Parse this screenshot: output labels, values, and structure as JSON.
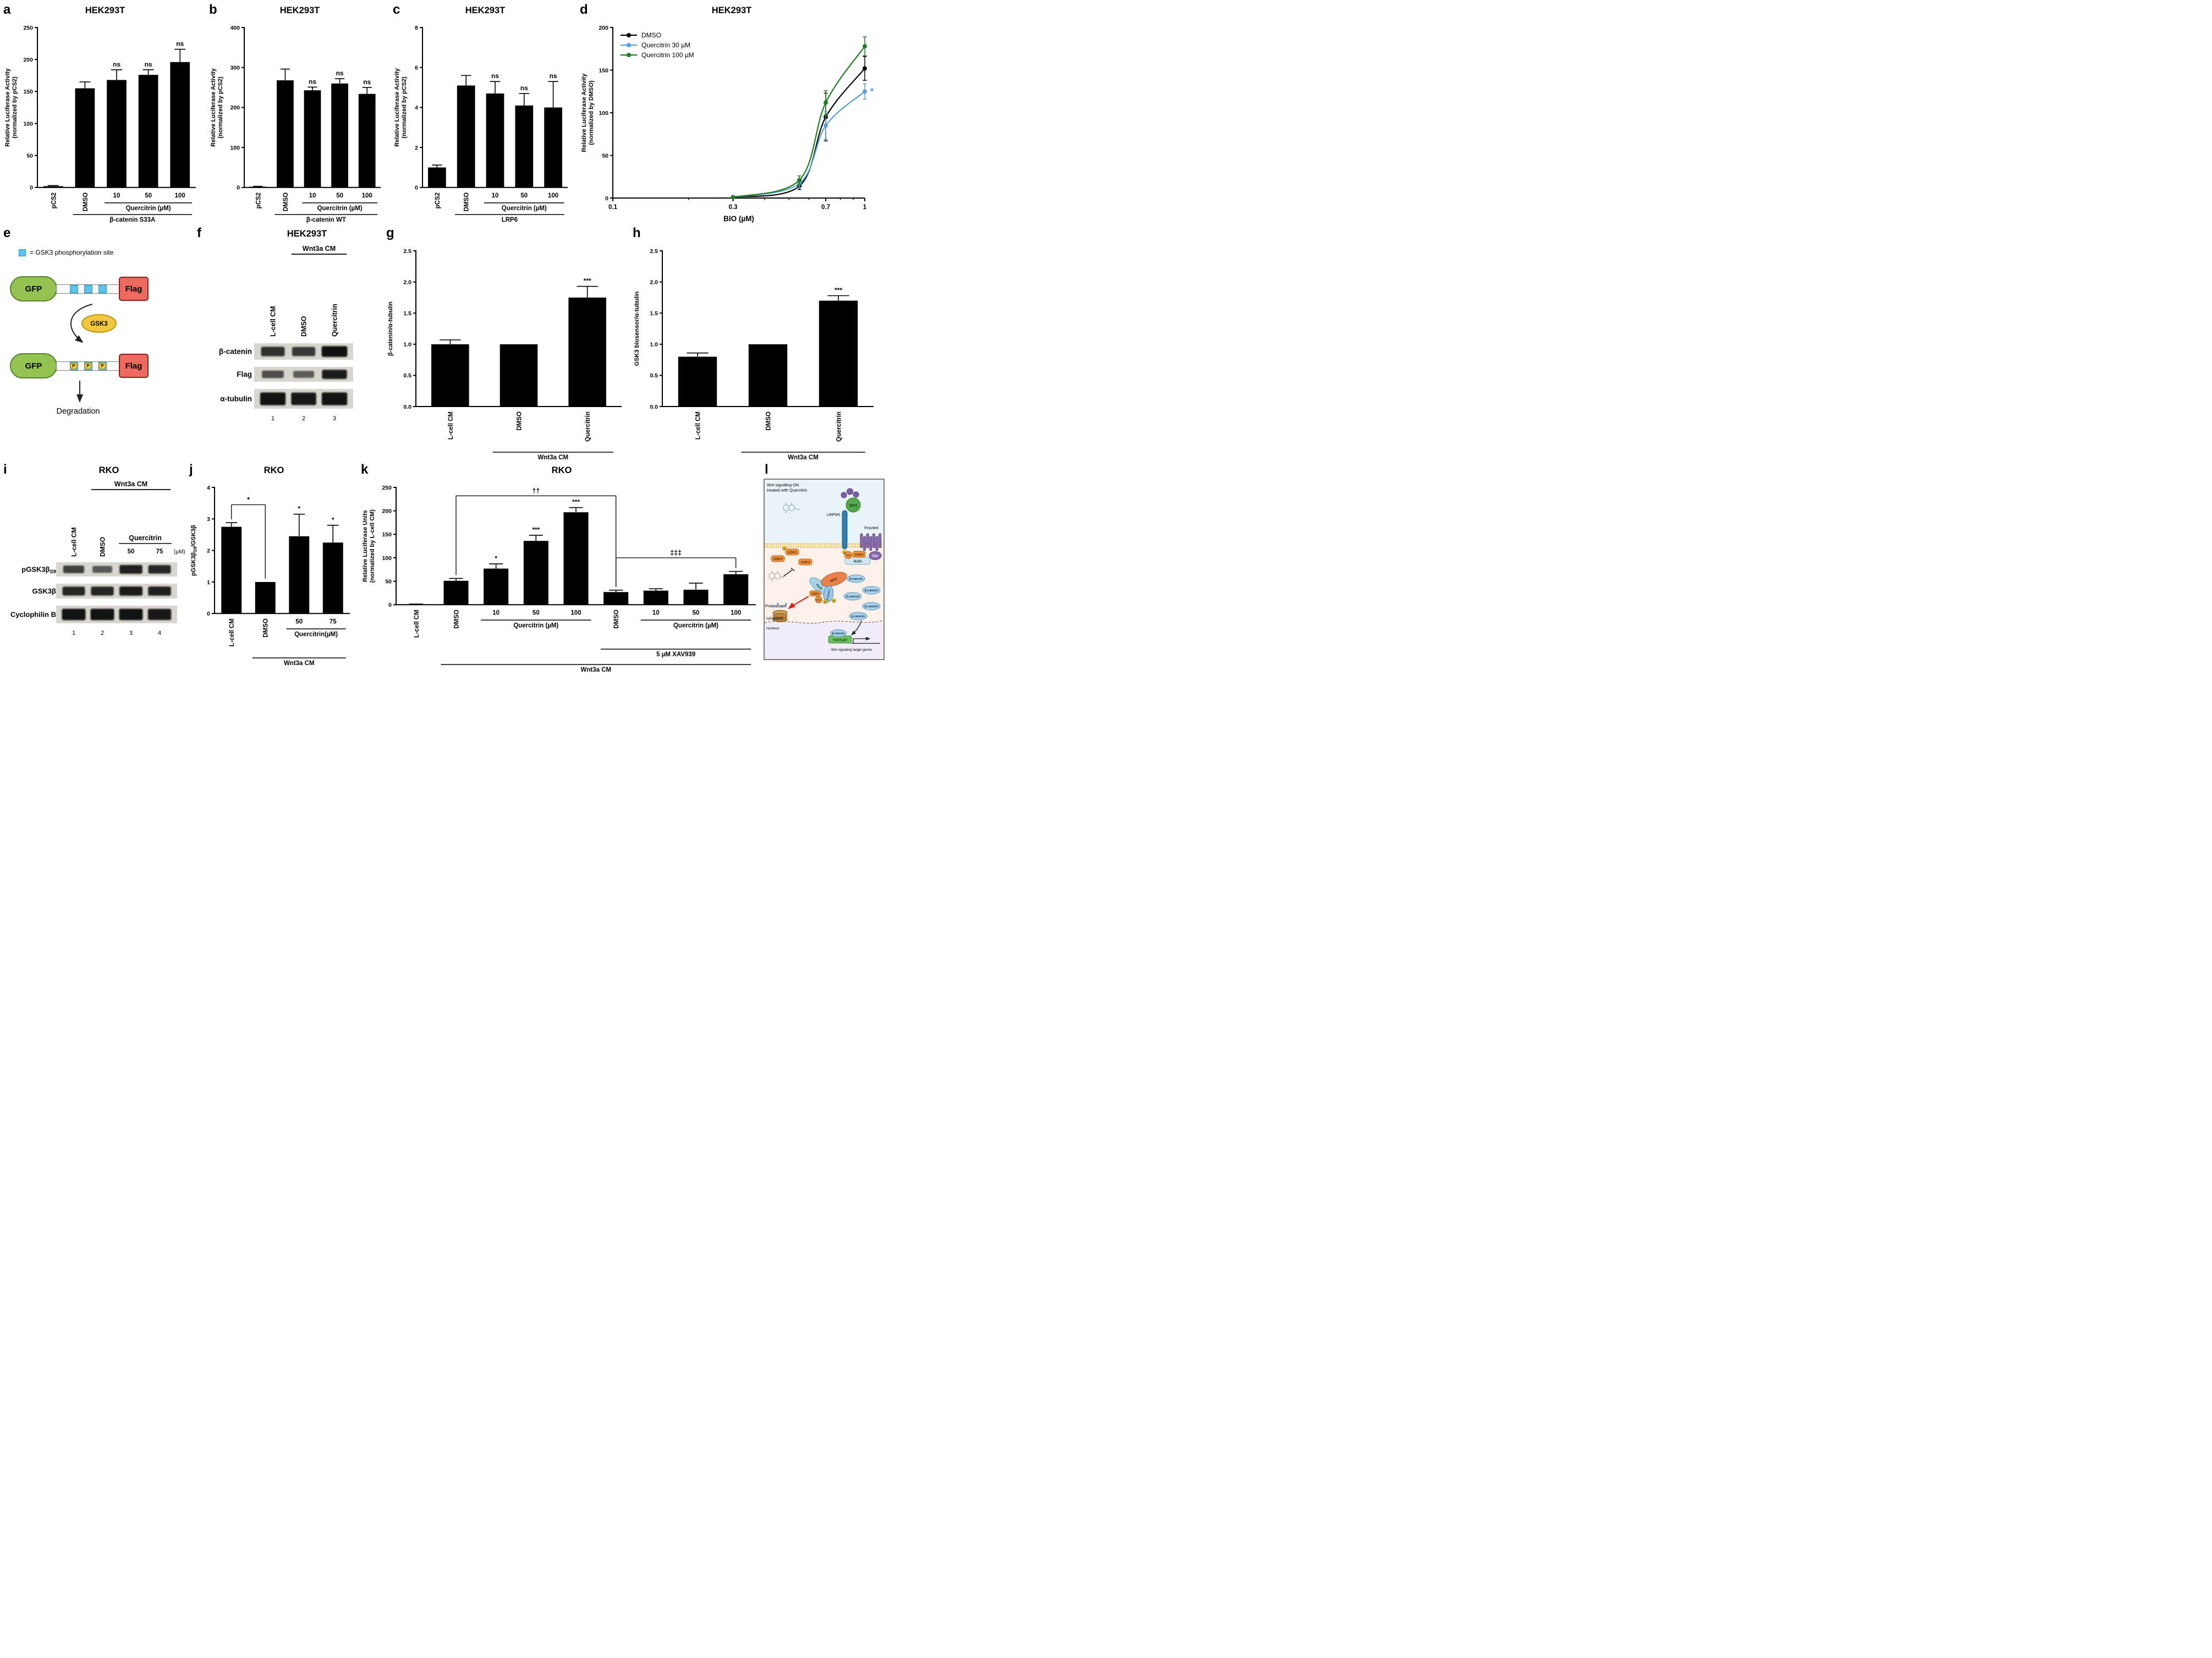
{
  "panels": {
    "a": {
      "letter": "a",
      "title": "HEK293T"
    },
    "b": {
      "letter": "b",
      "title": "HEK293T"
    },
    "c": {
      "letter": "c",
      "title": "HEK293T"
    },
    "d": {
      "letter": "d",
      "title": "HEK293T"
    },
    "e": {
      "letter": "e",
      "legend_text": "= GSK3 phosphorylation site",
      "gfp": "GFP",
      "flag": "Flag",
      "gsk3": "GSK3",
      "p": "P",
      "degradation": "Degradation"
    },
    "f": {
      "letter": "f",
      "title": "HEK293T"
    },
    "g": {
      "letter": "g"
    },
    "h": {
      "letter": "h"
    },
    "i": {
      "letter": "i",
      "title": "RKO"
    },
    "j": {
      "letter": "j",
      "title": "RKO"
    },
    "k": {
      "letter": "k",
      "title": "RKO"
    },
    "l": {
      "letter": "l",
      "header_line1": "Wnt signaling ON",
      "header_line2": "treated with Quercitrin",
      "lrp": "LRP5/6",
      "wnt": "Wnt",
      "frizzled": "Frizzled",
      "dvl": "Dvl",
      "ck1": "CK1",
      "gsk3": "GSK3",
      "axin": "Axin",
      "apc": "APC",
      "bcat": "β-catenin",
      "proteasome": "Proteasome",
      "cytoplasm": "cytoplasm",
      "nucleus": "nucleus",
      "tcf": "TCF/LEF",
      "target_genes": "Wnt signaling target genes",
      "p": "P"
    }
  },
  "chart_data": [
    {
      "id": "a",
      "type": "bar",
      "title": "HEK293T",
      "ylabel": "Relative Luciferase Activity\n(normalized by pCS2)",
      "ylim": [
        0,
        250
      ],
      "yticks": [
        "0",
        "50",
        "100",
        "150",
        "200",
        "250"
      ],
      "categories": [
        "pCS2",
        "DMSO",
        "10",
        "50",
        "100"
      ],
      "cat_rotate": [
        true,
        true,
        false,
        false,
        false
      ],
      "values": [
        2,
        155,
        168,
        176,
        196
      ],
      "errors": [
        1,
        10,
        16,
        8,
        20
      ],
      "sig": [
        "",
        "",
        "ns",
        "ns",
        "ns"
      ],
      "group_lines": [
        {
          "label": "Quercitrin (µM)",
          "from": 2,
          "to": 4,
          "row": 0
        },
        {
          "label": "β-catenin S33A",
          "from": 1,
          "to": 4,
          "row": 1
        }
      ]
    },
    {
      "id": "b",
      "type": "bar",
      "title": "HEK293T",
      "ylabel": "Relative Luciferase Activity\n(normalized by pCS2)",
      "ylim": [
        0,
        400
      ],
      "yticks": [
        "0",
        "100",
        "200",
        "300",
        "400"
      ],
      "categories": [
        "pCS2",
        "DMSO",
        "10",
        "50",
        "100"
      ],
      "cat_rotate": [
        true,
        true,
        false,
        false,
        false
      ],
      "values": [
        2,
        268,
        243,
        260,
        234
      ],
      "errors": [
        1,
        28,
        8,
        12,
        16
      ],
      "sig": [
        "",
        "",
        "ns",
        "ns",
        "ns"
      ],
      "group_lines": [
        {
          "label": "Quercitrin (µM)",
          "from": 2,
          "to": 4,
          "row": 0
        },
        {
          "label": "β-catenin WT",
          "from": 1,
          "to": 4,
          "row": 1
        }
      ]
    },
    {
      "id": "c",
      "type": "bar",
      "title": "HEK293T",
      "ylabel": "Relative Luciferase Activity\n(normalized by pCS2)",
      "ylim": [
        0,
        8
      ],
      "yticks": [
        "0",
        "2",
        "4",
        "6",
        "8"
      ],
      "categories": [
        "pCS2",
        "DMSO",
        "10",
        "50",
        "100"
      ],
      "cat_rotate": [
        true,
        true,
        false,
        false,
        false
      ],
      "values": [
        1,
        5.1,
        4.7,
        4.1,
        4.0
      ],
      "errors": [
        0.12,
        0.5,
        0.6,
        0.6,
        1.3
      ],
      "sig": [
        "",
        "",
        "ns",
        "ns",
        "ns"
      ],
      "group_lines": [
        {
          "label": "Quercitrin (µM)",
          "from": 2,
          "to": 4,
          "row": 0
        },
        {
          "label": "LRP6",
          "from": 1,
          "to": 4,
          "row": 1
        }
      ]
    },
    {
      "id": "d",
      "type": "line",
      "title": "HEK293T",
      "ylabel": "Relative Luciferase Activity\n(normalized by DMSO)",
      "xlabel": "BIO (µM)",
      "xlim": [
        0.1,
        1
      ],
      "xticks": [
        "0.1",
        "0.3",
        "0.7",
        "1"
      ],
      "xminor": [
        0.2,
        0.4,
        0.5,
        0.6,
        0.8,
        0.9
      ],
      "ylim": [
        0,
        200
      ],
      "yticks": [
        "0",
        "50",
        "100",
        "150",
        "200"
      ],
      "series": [
        {
          "name": "DMSO",
          "color": "#000000",
          "x": [
            0.3,
            0.55,
            0.7,
            1.0
          ],
          "y": [
            1,
            14,
            95,
            152
          ],
          "err": [
            1,
            4,
            28,
            14
          ]
        },
        {
          "name": "Quercitrin 30 µM",
          "color": "#56a0dc",
          "x": [
            0.3,
            0.55,
            0.7,
            1.0
          ],
          "y": [
            1,
            17,
            85,
            125
          ],
          "err": [
            1,
            5,
            16,
            9
          ]
        },
        {
          "name": "Quercitrin 100 µM",
          "color": "#1e7d1e",
          "x": [
            0.3,
            0.55,
            0.7,
            1.0
          ],
          "y": [
            1,
            21,
            112,
            178
          ],
          "err": [
            1,
            5,
            14,
            11
          ]
        }
      ],
      "annotation": {
        "text": "*",
        "color": "#56a0dc"
      }
    },
    {
      "id": "g",
      "type": "bar",
      "ylabel": "β-catenin/α-tubulin",
      "ylim": [
        0,
        2.5
      ],
      "yticks": [
        "0.0",
        "0.5",
        "1.0",
        "1.5",
        "2.0",
        "2.5"
      ],
      "categories": [
        "L-cell CM",
        "DMSO",
        "Quercitrin"
      ],
      "cat_rotate": [
        true,
        true,
        true
      ],
      "values": [
        1.0,
        1.0,
        1.75
      ],
      "errors": [
        0.07,
        0,
        0.18
      ],
      "sig": [
        "",
        "",
        "***"
      ],
      "near_row0": false,
      "group_lines": [
        {
          "label": "Wnt3a CM",
          "from": 1,
          "to": 2,
          "row": 0
        }
      ]
    },
    {
      "id": "h",
      "type": "bar",
      "ylabel": "GSK3 biosensor/α-tubulin",
      "ylim": [
        0,
        2.5
      ],
      "yticks": [
        "0.0",
        "0.5",
        "1.0",
        "1.5",
        "2.0",
        "2.5"
      ],
      "categories": [
        "L-cell CM",
        "DMSO",
        "Quercitrin"
      ],
      "cat_rotate": [
        true,
        true,
        true
      ],
      "values": [
        0.8,
        1.0,
        1.7
      ],
      "errors": [
        0.06,
        0,
        0.08
      ],
      "sig": [
        "",
        "",
        "***"
      ],
      "near_row0": false,
      "group_lines": [
        {
          "label": "Wnt3a CM",
          "from": 1,
          "to": 2,
          "row": 0
        }
      ]
    },
    {
      "id": "j",
      "type": "bar",
      "title": "RKO",
      "ylabel": "pGSK3β[S9]/GSK3β",
      "ylim": [
        0,
        4
      ],
      "yticks": [
        "0",
        "1",
        "2",
        "3",
        "4"
      ],
      "categories": [
        "L-cell CM",
        "DMSO",
        "50",
        "75"
      ],
      "cat_rotate": [
        true,
        true,
        false,
        false
      ],
      "values": [
        2.75,
        1.0,
        2.45,
        2.25
      ],
      "errors": [
        0.13,
        0,
        0.7,
        0.55
      ],
      "sig": [
        "",
        "",
        "*",
        "*"
      ],
      "brackets": [
        {
          "from": 0,
          "to": 1,
          "y": 3.45,
          "label": "*"
        }
      ],
      "group_lines": [
        {
          "label": "Quercitrin(µM)",
          "from": 2,
          "to": 3,
          "row": 0
        },
        {
          "label": "Wnt3a CM",
          "from": 1,
          "to": 3,
          "row": 1
        }
      ]
    },
    {
      "id": "k",
      "type": "bar",
      "title": "RKO",
      "ylabel": "Relative Luciferase Units\n(normalized by L-cell CM)",
      "ylim": [
        0,
        250
      ],
      "yticks": [
        "0",
        "50",
        "100",
        "150",
        "200",
        "250"
      ],
      "categories": [
        "L-cell CM",
        "DMSO",
        "10",
        "50",
        "100",
        "DMSO",
        "10",
        "50",
        "100"
      ],
      "cat_rotate": [
        true,
        true,
        false,
        false,
        false,
        true,
        false,
        false,
        false
      ],
      "values": [
        1,
        51,
        77,
        136,
        197,
        27,
        30,
        32,
        65
      ],
      "errors": [
        0.5,
        5,
        10,
        12,
        10,
        4,
        4,
        14,
        6
      ],
      "sig": [
        "",
        "",
        "*",
        "***",
        "***",
        "",
        "",
        "",
        ""
      ],
      "brackets": [
        {
          "from": 1,
          "to": 5,
          "y": 232,
          "label": "††"
        },
        {
          "from": 5,
          "to": 8,
          "y": 100,
          "label": "‡‡‡"
        }
      ],
      "group_lines": [
        {
          "label": "Quercitrin (µM)",
          "from": 2,
          "to": 4,
          "row": 0
        },
        {
          "label": "Quercitrin (µM)",
          "from": 6,
          "to": 8,
          "row": 0
        },
        {
          "label": "5 µM XAV939",
          "from": 5,
          "to": 8,
          "row": 1
        },
        {
          "label": "Wnt3a CM",
          "from": 1,
          "to": 8,
          "row": 2
        }
      ]
    }
  ],
  "blots": {
    "f": {
      "overline": {
        "label": "Wnt3a CM",
        "from": 1,
        "to": 2
      },
      "lane_labels": [
        "L-cell CM",
        "DMSO",
        "Quercitrin"
      ],
      "rows": [
        {
          "label": "β-catenin",
          "bands": [
            0.72,
            0.66,
            0.97
          ]
        },
        {
          "label": "Flag",
          "bands": [
            0.5,
            0.38,
            0.88
          ]
        },
        {
          "label": "α-tubulin",
          "bands": [
            0.95,
            0.9,
            0.95
          ]
        }
      ],
      "lane_numbers": [
        "1",
        "2",
        "3"
      ]
    },
    "i": {
      "overline": {
        "label": "Wnt3a CM",
        "from": 1,
        "to": 3
      },
      "rot_labels": [
        "L-cell CM",
        "DMSO"
      ],
      "quercitrin": {
        "label": "Quercitrin",
        "doses": [
          "50",
          "75"
        ],
        "unit": "(µM)"
      },
      "rows": [
        {
          "label": "pGSK3β[S9]",
          "bands": [
            0.6,
            0.42,
            0.85,
            0.8
          ]
        },
        {
          "label": "GSK3β",
          "bands": [
            0.8,
            0.82,
            0.88,
            0.85
          ]
        },
        {
          "label": "Cyclophilin B",
          "bands": [
            0.95,
            0.95,
            0.95,
            0.9
          ]
        }
      ],
      "lane_numbers": [
        "1",
        "2",
        "3",
        "4"
      ]
    }
  }
}
